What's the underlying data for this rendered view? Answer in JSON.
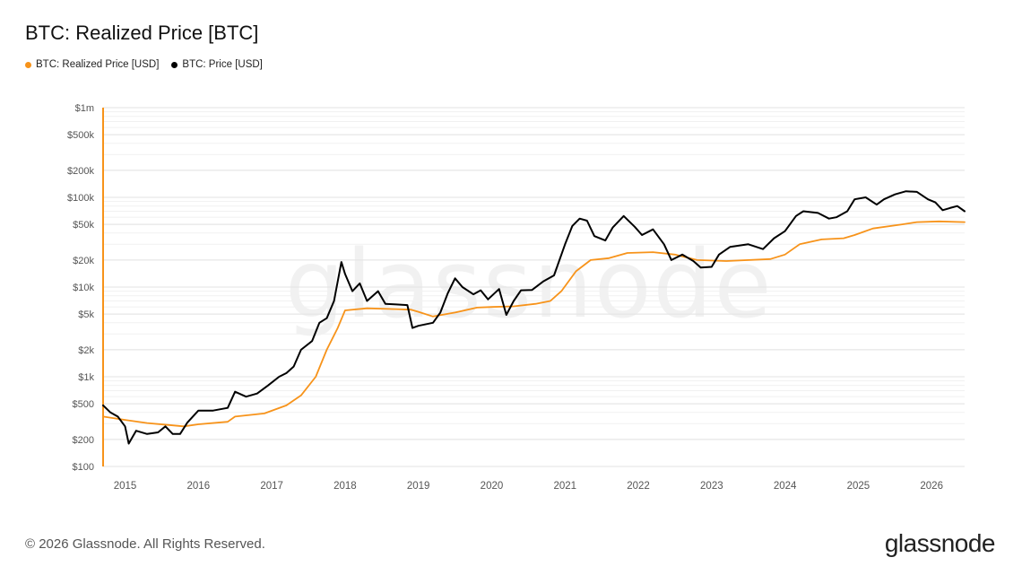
{
  "chart_data": {
    "type": "line",
    "title": "BTC: Realized Price [BTC]",
    "legend_position": "top-left",
    "y_scale": "log",
    "ylim": [
      100,
      1000000
    ],
    "y_ticks": [
      {
        "value": 100,
        "label": "$100"
      },
      {
        "value": 200,
        "label": "$200"
      },
      {
        "value": 500,
        "label": "$500"
      },
      {
        "value": 1000,
        "label": "$1k"
      },
      {
        "value": 2000,
        "label": "$2k"
      },
      {
        "value": 5000,
        "label": "$5k"
      },
      {
        "value": 10000,
        "label": "$10k"
      },
      {
        "value": 20000,
        "label": "$20k"
      },
      {
        "value": 50000,
        "label": "$50k"
      },
      {
        "value": 100000,
        "label": "$100k"
      },
      {
        "value": 200000,
        "label": "$200k"
      },
      {
        "value": 500000,
        "label": "$500k"
      },
      {
        "value": 1000000,
        "label": "$1m"
      }
    ],
    "xlim": [
      2014.7,
      2026.45
    ],
    "x_ticks": [
      "2015",
      "2016",
      "2017",
      "2018",
      "2019",
      "2020",
      "2021",
      "2022",
      "2023",
      "2024",
      "2025",
      "2026"
    ],
    "grid": true,
    "series": [
      {
        "name": "BTC: Realized Price [USD]",
        "color": "#f7931a",
        "points": [
          [
            2014.7,
            360
          ],
          [
            2015.0,
            330
          ],
          [
            2015.3,
            305
          ],
          [
            2015.6,
            290
          ],
          [
            2015.8,
            280
          ],
          [
            2016.0,
            295
          ],
          [
            2016.4,
            315
          ],
          [
            2016.5,
            360
          ],
          [
            2016.9,
            390
          ],
          [
            2017.2,
            480
          ],
          [
            2017.4,
            620
          ],
          [
            2017.6,
            1000
          ],
          [
            2017.75,
            2000
          ],
          [
            2017.9,
            3500
          ],
          [
            2018.0,
            5500
          ],
          [
            2018.3,
            5800
          ],
          [
            2018.6,
            5700
          ],
          [
            2018.9,
            5600
          ],
          [
            2019.0,
            5300
          ],
          [
            2019.2,
            4700
          ],
          [
            2019.5,
            5200
          ],
          [
            2019.8,
            5900
          ],
          [
            2020.0,
            6000
          ],
          [
            2020.3,
            6100
          ],
          [
            2020.6,
            6500
          ],
          [
            2020.8,
            7000
          ],
          [
            2020.95,
            9000
          ],
          [
            2021.15,
            15000
          ],
          [
            2021.35,
            20000
          ],
          [
            2021.6,
            21000
          ],
          [
            2021.85,
            24000
          ],
          [
            2022.2,
            24500
          ],
          [
            2022.5,
            23000
          ],
          [
            2022.8,
            20000
          ],
          [
            2023.2,
            19500
          ],
          [
            2023.8,
            20500
          ],
          [
            2024.0,
            23000
          ],
          [
            2024.2,
            30000
          ],
          [
            2024.5,
            34000
          ],
          [
            2024.8,
            35000
          ],
          [
            2024.95,
            38000
          ],
          [
            2025.2,
            45000
          ],
          [
            2025.6,
            50000
          ],
          [
            2025.8,
            53000
          ],
          [
            2026.1,
            54000
          ],
          [
            2026.45,
            53000
          ]
        ]
      },
      {
        "name": "BTC: Price [USD]",
        "color": "#000000",
        "points": [
          [
            2014.7,
            480
          ],
          [
            2014.8,
            400
          ],
          [
            2014.9,
            360
          ],
          [
            2015.0,
            280
          ],
          [
            2015.05,
            180
          ],
          [
            2015.15,
            250
          ],
          [
            2015.3,
            230
          ],
          [
            2015.45,
            240
          ],
          [
            2015.55,
            280
          ],
          [
            2015.65,
            230
          ],
          [
            2015.75,
            230
          ],
          [
            2015.85,
            310
          ],
          [
            2016.0,
            420
          ],
          [
            2016.2,
            420
          ],
          [
            2016.4,
            450
          ],
          [
            2016.5,
            680
          ],
          [
            2016.65,
            600
          ],
          [
            2016.8,
            650
          ],
          [
            2016.95,
            800
          ],
          [
            2017.1,
            1000
          ],
          [
            2017.2,
            1100
          ],
          [
            2017.3,
            1300
          ],
          [
            2017.4,
            2000
          ],
          [
            2017.55,
            2500
          ],
          [
            2017.65,
            4000
          ],
          [
            2017.75,
            4500
          ],
          [
            2017.85,
            7000
          ],
          [
            2017.95,
            19000
          ],
          [
            2018.0,
            14000
          ],
          [
            2018.1,
            9000
          ],
          [
            2018.2,
            11000
          ],
          [
            2018.3,
            7000
          ],
          [
            2018.45,
            9000
          ],
          [
            2018.55,
            6500
          ],
          [
            2018.7,
            6400
          ],
          [
            2018.85,
            6300
          ],
          [
            2018.92,
            3500
          ],
          [
            2019.0,
            3700
          ],
          [
            2019.2,
            4000
          ],
          [
            2019.3,
            5200
          ],
          [
            2019.4,
            8500
          ],
          [
            2019.5,
            12500
          ],
          [
            2019.6,
            10000
          ],
          [
            2019.75,
            8300
          ],
          [
            2019.85,
            9200
          ],
          [
            2019.95,
            7300
          ],
          [
            2020.1,
            9500
          ],
          [
            2020.2,
            4900
          ],
          [
            2020.3,
            7000
          ],
          [
            2020.4,
            9200
          ],
          [
            2020.55,
            9300
          ],
          [
            2020.7,
            11500
          ],
          [
            2020.85,
            13500
          ],
          [
            2021.0,
            30000
          ],
          [
            2021.1,
            48000
          ],
          [
            2021.2,
            58000
          ],
          [
            2021.3,
            55000
          ],
          [
            2021.4,
            37000
          ],
          [
            2021.55,
            33000
          ],
          [
            2021.65,
            46000
          ],
          [
            2021.8,
            62000
          ],
          [
            2021.95,
            47000
          ],
          [
            2022.05,
            38000
          ],
          [
            2022.2,
            44000
          ],
          [
            2022.35,
            30000
          ],
          [
            2022.45,
            20000
          ],
          [
            2022.6,
            23000
          ],
          [
            2022.75,
            19500
          ],
          [
            2022.85,
            16500
          ],
          [
            2023.0,
            16800
          ],
          [
            2023.1,
            23000
          ],
          [
            2023.25,
            28000
          ],
          [
            2023.5,
            30000
          ],
          [
            2023.7,
            26500
          ],
          [
            2023.85,
            35000
          ],
          [
            2024.0,
            42000
          ],
          [
            2024.15,
            62000
          ],
          [
            2024.25,
            70000
          ],
          [
            2024.45,
            67000
          ],
          [
            2024.6,
            58000
          ],
          [
            2024.7,
            60000
          ],
          [
            2024.85,
            70000
          ],
          [
            2024.95,
            95000
          ],
          [
            2025.1,
            100000
          ],
          [
            2025.25,
            83000
          ],
          [
            2025.35,
            95000
          ],
          [
            2025.5,
            108000
          ],
          [
            2025.65,
            117000
          ],
          [
            2025.8,
            115000
          ],
          [
            2025.95,
            95000
          ],
          [
            2026.05,
            88000
          ],
          [
            2026.15,
            72000
          ],
          [
            2026.25,
            76000
          ],
          [
            2026.35,
            80000
          ],
          [
            2026.45,
            70000
          ]
        ]
      }
    ]
  },
  "watermark": "glassnode",
  "footer": {
    "copyright": "© 2026 Glassnode. All Rights Reserved.",
    "brand": "glassnode"
  }
}
